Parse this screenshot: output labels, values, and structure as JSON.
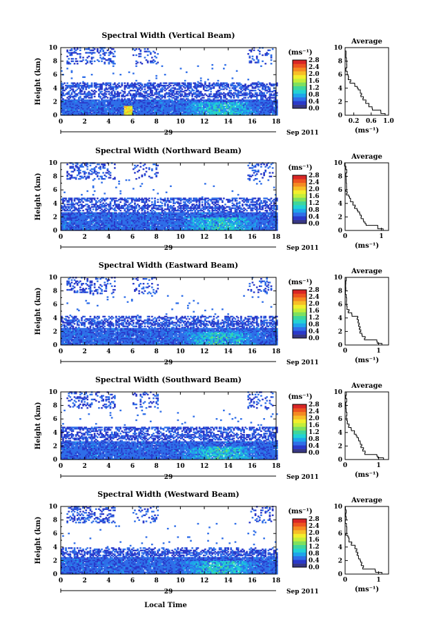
{
  "figure": {
    "xlabel": "Local Time",
    "date_day": "29",
    "date_label": "Sep 2011",
    "ylabel": "Height (km)",
    "colorbar_unit": "(ms⁻¹)",
    "avg_title": "Average",
    "avg_xlabel": "(ms⁻¹)"
  },
  "colorscale": {
    "colors": [
      "#383884",
      "#2a39c9",
      "#2f6ee8",
      "#1ea5ea",
      "#22d2d4",
      "#3fd69b",
      "#7ee05f",
      "#c4ee3a",
      "#f2ee2c",
      "#f7be26",
      "#f48a22",
      "#ed5420",
      "#d82626"
    ],
    "ticks": [
      "0.0",
      "0.4",
      "0.8",
      "1.2",
      "1.6",
      "2.0",
      "2.4",
      "2.8"
    ]
  },
  "chart_data": [
    {
      "type": "heatmap",
      "title": "Spectral Width (Vertical Beam)",
      "x_range": [
        0,
        18
      ],
      "y_range": [
        0,
        10
      ],
      "xticks": [
        "0",
        "2",
        "4",
        "6",
        "8",
        "10",
        "12",
        "14",
        "16",
        "18"
      ],
      "yticks": [
        "0",
        "2",
        "4",
        "6",
        "8",
        "10"
      ],
      "cell_values": {
        "low_layer_km": [
          0,
          2.3
        ],
        "mid_layer_km": [
          2.3,
          4.8
        ],
        "typical": 0.5,
        "peak": 2.2,
        "peak_hour": 5.6
      },
      "average": {
        "x_range": [
          0,
          1.0
        ],
        "xticks": [
          "0.2",
          "0.6",
          "1.0"
        ],
        "tick_values": [
          0.2,
          0.6,
          1.0
        ],
        "profile": [
          [
            0.92,
            0
          ],
          [
            0.82,
            0.5
          ],
          [
            0.62,
            1
          ],
          [
            0.55,
            1.5
          ],
          [
            0.48,
            2
          ],
          [
            0.42,
            2.5
          ],
          [
            0.38,
            3
          ],
          [
            0.35,
            3.5
          ],
          [
            0.28,
            4
          ],
          [
            0.22,
            4.5
          ],
          [
            0.13,
            5
          ],
          [
            0.08,
            5.5
          ],
          [
            0.05,
            6
          ],
          [
            0.04,
            7
          ],
          [
            0.03,
            8
          ],
          [
            0.02,
            9
          ],
          [
            0.02,
            10
          ]
        ]
      }
    },
    {
      "type": "heatmap",
      "title": "Spectral Width (Northward Beam)",
      "x_range": [
        0,
        18
      ],
      "y_range": [
        0,
        10
      ],
      "xticks": [
        "0",
        "2",
        "4",
        "6",
        "8",
        "10",
        "12",
        "14",
        "16",
        "18"
      ],
      "yticks": [
        "0",
        "2",
        "4",
        "6",
        "8",
        "10"
      ],
      "cell_values": {
        "low_layer_km": [
          0,
          2.6
        ],
        "mid_layer_km": [
          2.6,
          4.8
        ],
        "typical": 0.5
      },
      "average": {
        "x_range": [
          0,
          1.2
        ],
        "xticks": [
          "0",
          "1"
        ],
        "tick_values": [
          0,
          1
        ],
        "profile": [
          [
            1.05,
            0
          ],
          [
            0.9,
            0.5
          ],
          [
            0.55,
            1
          ],
          [
            0.5,
            1.5
          ],
          [
            0.45,
            2
          ],
          [
            0.4,
            2.5
          ],
          [
            0.33,
            3
          ],
          [
            0.28,
            3.5
          ],
          [
            0.22,
            4
          ],
          [
            0.15,
            4.5
          ],
          [
            0.1,
            5
          ],
          [
            0.06,
            5.5
          ],
          [
            0.04,
            6
          ],
          [
            0.03,
            7
          ],
          [
            0.02,
            8
          ],
          [
            0.02,
            9
          ],
          [
            0.01,
            10
          ]
        ]
      }
    },
    {
      "type": "heatmap",
      "title": "Spectral Width (Eastward Beam)",
      "x_range": [
        0,
        18
      ],
      "y_range": [
        0,
        10
      ],
      "xticks": [
        "0",
        "2",
        "4",
        "6",
        "8",
        "10",
        "12",
        "14",
        "16",
        "18"
      ],
      "yticks": [
        "0",
        "2",
        "4",
        "6",
        "8",
        "10"
      ],
      "cell_values": {
        "low_layer_km": [
          0,
          2.5
        ],
        "mid_layer_km": [
          2.5,
          4.2
        ],
        "typical": 0.5
      },
      "average": {
        "x_range": [
          0,
          1.3
        ],
        "xticks": [
          "0",
          "1"
        ],
        "tick_values": [
          0,
          1
        ],
        "profile": [
          [
            1.1,
            0
          ],
          [
            0.95,
            0.5
          ],
          [
            0.6,
            1
          ],
          [
            0.5,
            1.5
          ],
          [
            0.47,
            2
          ],
          [
            0.45,
            2.5
          ],
          [
            0.42,
            3
          ],
          [
            0.4,
            3.5
          ],
          [
            0.38,
            4
          ],
          [
            0.2,
            4.5
          ],
          [
            0.12,
            5
          ],
          [
            0.06,
            5.5
          ],
          [
            0.04,
            6
          ],
          [
            0.03,
            7
          ],
          [
            0.02,
            8
          ],
          [
            0.02,
            9
          ],
          [
            0.01,
            10
          ]
        ]
      }
    },
    {
      "type": "heatmap",
      "title": "Spectral Width (Southward Beam)",
      "x_range": [
        0,
        18
      ],
      "y_range": [
        0,
        10
      ],
      "xticks": [
        "0",
        "2",
        "4",
        "6",
        "8",
        "10",
        "12",
        "14",
        "16",
        "18"
      ],
      "yticks": [
        "0",
        "2",
        "4",
        "6",
        "8",
        "10"
      ],
      "cell_values": {
        "low_layer_km": [
          0,
          2.6
        ],
        "mid_layer_km": [
          2.6,
          4.8
        ],
        "typical": 0.5
      },
      "average": {
        "x_range": [
          0,
          1.3
        ],
        "xticks": [
          "0",
          "1"
        ],
        "tick_values": [
          0,
          1
        ],
        "profile": [
          [
            1.15,
            0
          ],
          [
            0.95,
            0.5
          ],
          [
            0.6,
            1
          ],
          [
            0.55,
            1.5
          ],
          [
            0.5,
            2
          ],
          [
            0.45,
            2.5
          ],
          [
            0.4,
            3
          ],
          [
            0.33,
            3.5
          ],
          [
            0.28,
            4
          ],
          [
            0.18,
            4.5
          ],
          [
            0.12,
            5
          ],
          [
            0.07,
            5.5
          ],
          [
            0.04,
            6
          ],
          [
            0.03,
            7
          ],
          [
            0.02,
            8
          ],
          [
            0.02,
            9
          ],
          [
            0.01,
            10
          ]
        ]
      }
    },
    {
      "type": "heatmap",
      "title": "Spectral Width (Westward Beam)",
      "x_range": [
        0,
        18
      ],
      "y_range": [
        0,
        10
      ],
      "xticks": [
        "0",
        "2",
        "4",
        "6",
        "8",
        "10",
        "12",
        "14",
        "16",
        "18"
      ],
      "yticks": [
        "0",
        "2",
        "4",
        "6",
        "8",
        "10"
      ],
      "cell_values": {
        "low_layer_km": [
          0,
          2.4
        ],
        "mid_layer_km": [
          2.4,
          3.8
        ],
        "typical": 0.5
      },
      "average": {
        "x_range": [
          0,
          1.3
        ],
        "xticks": [
          "0",
          "1"
        ],
        "tick_values": [
          0,
          1
        ],
        "profile": [
          [
            1.1,
            0
          ],
          [
            0.9,
            0.5
          ],
          [
            0.55,
            1
          ],
          [
            0.5,
            1.5
          ],
          [
            0.45,
            2
          ],
          [
            0.4,
            2.5
          ],
          [
            0.38,
            3
          ],
          [
            0.35,
            3.5
          ],
          [
            0.3,
            4
          ],
          [
            0.2,
            4.5
          ],
          [
            0.12,
            5
          ],
          [
            0.08,
            5.5
          ],
          [
            0.05,
            6
          ],
          [
            0.04,
            7
          ],
          [
            0.03,
            8
          ],
          [
            0.03,
            9
          ],
          [
            0.02,
            10
          ]
        ]
      }
    }
  ]
}
